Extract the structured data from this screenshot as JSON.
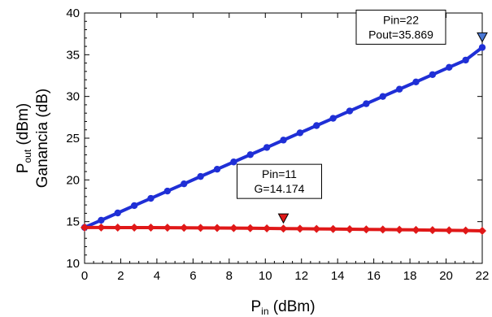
{
  "chart_data": {
    "type": "line",
    "xlim": [
      0,
      22
    ],
    "ylim": [
      10,
      40
    ],
    "x_ticks": [
      0,
      2,
      4,
      6,
      8,
      10,
      12,
      14,
      16,
      18,
      20,
      22
    ],
    "y_ticks": [
      10,
      15,
      20,
      25,
      30,
      35,
      40
    ],
    "xlabel": {
      "main": "P",
      "sub": "in",
      "rest": " (dBm)"
    },
    "ylabel": {
      "line1": {
        "main": "P",
        "sub": "out",
        "rest": " (dBm)"
      },
      "line2": "Ganancia (dB)"
    },
    "x": [
      0,
      0.917,
      1.833,
      2.75,
      3.667,
      4.583,
      5.5,
      6.417,
      7.333,
      8.25,
      9.167,
      10.083,
      11,
      11.917,
      12.833,
      13.75,
      14.667,
      15.583,
      16.5,
      17.417,
      18.333,
      19.25,
      20.167,
      21.083,
      22
    ],
    "series": [
      {
        "color": "#1f2fd6",
        "marker": "circle",
        "values": [
          14.3,
          15.17,
          16.04,
          16.92,
          17.79,
          18.66,
          19.53,
          20.41,
          21.28,
          22.15,
          23.02,
          23.89,
          24.77,
          25.64,
          26.51,
          27.38,
          28.26,
          29.13,
          30.0,
          30.87,
          31.74,
          32.62,
          33.49,
          34.36,
          35.87
        ]
      },
      {
        "color": "#e01818",
        "marker": "diamond",
        "values": [
          14.3,
          14.3,
          14.29,
          14.29,
          14.28,
          14.27,
          14.26,
          14.25,
          14.24,
          14.23,
          14.21,
          14.19,
          14.17,
          14.15,
          14.13,
          14.11,
          14.09,
          14.07,
          14.05,
          14.03,
          14.01,
          13.98,
          13.96,
          13.93,
          13.9
        ]
      }
    ],
    "markers": [
      {
        "series": 0,
        "x": 22,
        "y": 35.869,
        "symbol": "triangle-down",
        "color": "#4a78d4",
        "lines": [
          "Pin=22",
          "Pout=35.869"
        ]
      },
      {
        "series": 1,
        "x": 11,
        "y": 14.174,
        "symbol": "triangle-down",
        "color": "#e01818",
        "lines": [
          "Pin=11",
          "G=14.174"
        ]
      }
    ]
  }
}
